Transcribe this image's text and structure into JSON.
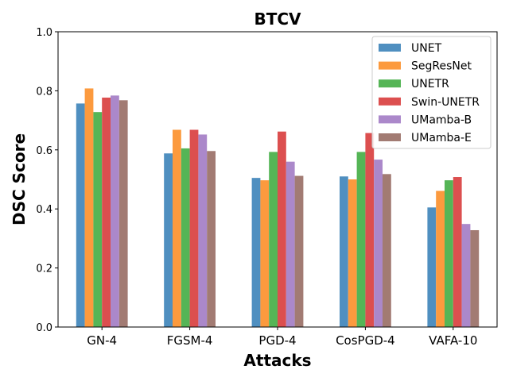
{
  "chart_data": {
    "type": "bar",
    "title": "BTCV",
    "xlabel": "Attacks",
    "ylabel": "DSC Score",
    "ylim": [
      0,
      1.0
    ],
    "yticks": [
      "0.0",
      "0.2",
      "0.4",
      "0.6",
      "0.8",
      "1.0"
    ],
    "categories": [
      "GN-4",
      "FGSM-4",
      "PGD-4",
      "CosPGD-4",
      "VAFA-10"
    ],
    "legend_position": "top-right",
    "series": [
      {
        "name": "UNET",
        "color": "#4f8fc0",
        "values": [
          0.757,
          0.588,
          0.505,
          0.51,
          0.405
        ]
      },
      {
        "name": "SegResNet",
        "color": "#fc9a3e",
        "values": [
          0.808,
          0.668,
          0.497,
          0.5,
          0.461
        ]
      },
      {
        "name": "UNETR",
        "color": "#55b556",
        "values": [
          0.728,
          0.605,
          0.593,
          0.593,
          0.497
        ]
      },
      {
        "name": "Swin-UNETR",
        "color": "#dc4f4f",
        "values": [
          0.777,
          0.668,
          0.662,
          0.657,
          0.508
        ]
      },
      {
        "name": "UMamba-B",
        "color": "#ab88ca",
        "values": [
          0.784,
          0.652,
          0.56,
          0.567,
          0.349
        ]
      },
      {
        "name": "UMamba-E",
        "color": "#a27b73",
        "values": [
          0.768,
          0.596,
          0.512,
          0.518,
          0.328
        ]
      }
    ]
  }
}
